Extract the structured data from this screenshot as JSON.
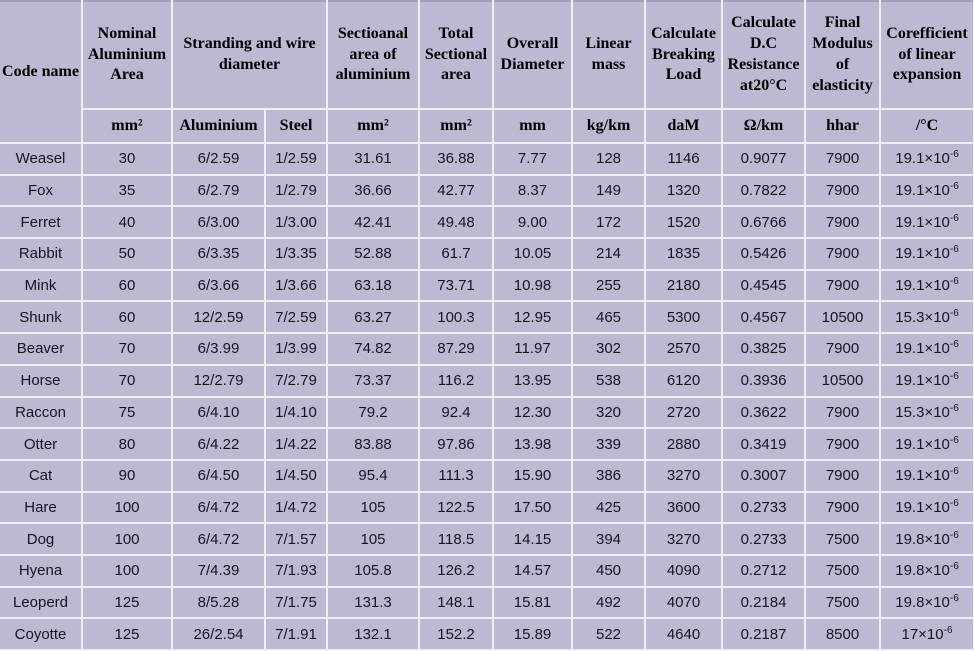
{
  "chart_data": {
    "type": "table",
    "header": {
      "code_name": "Code name",
      "nominal_area": "Nominal Aluminium Area",
      "stranding": "Stranding and wire diameter",
      "sectional_aluminium": "Sectioanal area of aluminium",
      "total_sectional": "Total Sectional area",
      "overall_diameter": "Overall Diameter",
      "linear_mass": "Linear mass",
      "breaking_load": "Calculate Breaking Load",
      "dc_resistance": "Calculate D.C Resistance at20°C",
      "final_modulus": "Final Modulus of elasticity",
      "expansion_coefficient": "Corefficient of linear expansion"
    },
    "units": {
      "nominal_area": "mm²",
      "stranding_aluminium": "Aluminium",
      "stranding_steel": "Steel",
      "sectional_aluminium": "mm²",
      "total_sectional": "mm²",
      "overall_diameter": "mm",
      "linear_mass": "kg/km",
      "breaking_load": "daM",
      "dc_resistance": "Ω/km",
      "final_modulus": "hhar",
      "expansion_coefficient": "/°C"
    },
    "expansion_notation_prefix": "×10",
    "rows": [
      {
        "code": "Weasel",
        "nominal_area": "30",
        "stranding_aluminium": "6/2.59",
        "stranding_steel": "1/2.59",
        "sectional_aluminium": "31.61",
        "total_sectional": "36.88",
        "overall_diameter": "7.77",
        "linear_mass": "128",
        "breaking_load": "1146",
        "dc_resistance": "0.9077",
        "final_modulus": "7900",
        "expansion_base": "19.1",
        "expansion_exp": "-6"
      },
      {
        "code": "Fox",
        "nominal_area": "35",
        "stranding_aluminium": "6/2.79",
        "stranding_steel": "1/2.79",
        "sectional_aluminium": "36.66",
        "total_sectional": "42.77",
        "overall_diameter": "8.37",
        "linear_mass": "149",
        "breaking_load": "1320",
        "dc_resistance": "0.7822",
        "final_modulus": "7900",
        "expansion_base": "19.1",
        "expansion_exp": "-6"
      },
      {
        "code": "Ferret",
        "nominal_area": "40",
        "stranding_aluminium": "6/3.00",
        "stranding_steel": "1/3.00",
        "sectional_aluminium": "42.41",
        "total_sectional": "49.48",
        "overall_diameter": "9.00",
        "linear_mass": "172",
        "breaking_load": "1520",
        "dc_resistance": "0.6766",
        "final_modulus": "7900",
        "expansion_base": "19.1",
        "expansion_exp": "-6"
      },
      {
        "code": "Rabbit",
        "nominal_area": "50",
        "stranding_aluminium": "6/3.35",
        "stranding_steel": "1/3.35",
        "sectional_aluminium": "52.88",
        "total_sectional": "61.7",
        "overall_diameter": "10.05",
        "linear_mass": "214",
        "breaking_load": "1835",
        "dc_resistance": "0.5426",
        "final_modulus": "7900",
        "expansion_base": "19.1",
        "expansion_exp": "-6"
      },
      {
        "code": "Mink",
        "nominal_area": "60",
        "stranding_aluminium": "6/3.66",
        "stranding_steel": "1/3.66",
        "sectional_aluminium": "63.18",
        "total_sectional": "73.71",
        "overall_diameter": "10.98",
        "linear_mass": "255",
        "breaking_load": "2180",
        "dc_resistance": "0.4545",
        "final_modulus": "7900",
        "expansion_base": "19.1",
        "expansion_exp": "-6"
      },
      {
        "code": "Shunk",
        "nominal_area": "60",
        "stranding_aluminium": "12/2.59",
        "stranding_steel": "7/2.59",
        "sectional_aluminium": "63.27",
        "total_sectional": "100.3",
        "overall_diameter": "12.95",
        "linear_mass": "465",
        "breaking_load": "5300",
        "dc_resistance": "0.4567",
        "final_modulus": "10500",
        "expansion_base": "15.3",
        "expansion_exp": "-6"
      },
      {
        "code": "Beaver",
        "nominal_area": "70",
        "stranding_aluminium": "6/3.99",
        "stranding_steel": "1/3.99",
        "sectional_aluminium": "74.82",
        "total_sectional": "87.29",
        "overall_diameter": "11.97",
        "linear_mass": "302",
        "breaking_load": "2570",
        "dc_resistance": "0.3825",
        "final_modulus": "7900",
        "expansion_base": "19.1",
        "expansion_exp": "-6"
      },
      {
        "code": "Horse",
        "nominal_area": "70",
        "stranding_aluminium": "12/2.79",
        "stranding_steel": "7/2.79",
        "sectional_aluminium": "73.37",
        "total_sectional": "116.2",
        "overall_diameter": "13.95",
        "linear_mass": "538",
        "breaking_load": "6120",
        "dc_resistance": "0.3936",
        "final_modulus": "10500",
        "expansion_base": "19.1",
        "expansion_exp": "-6"
      },
      {
        "code": "Raccon",
        "nominal_area": "75",
        "stranding_aluminium": "6/4.10",
        "stranding_steel": "1/4.10",
        "sectional_aluminium": "79.2",
        "total_sectional": "92.4",
        "overall_diameter": "12.30",
        "linear_mass": "320",
        "breaking_load": "2720",
        "dc_resistance": "0.3622",
        "final_modulus": "7900",
        "expansion_base": "15.3",
        "expansion_exp": "-6"
      },
      {
        "code": "Otter",
        "nominal_area": "80",
        "stranding_aluminium": "6/4.22",
        "stranding_steel": "1/4.22",
        "sectional_aluminium": "83.88",
        "total_sectional": "97.86",
        "overall_diameter": "13.98",
        "linear_mass": "339",
        "breaking_load": "2880",
        "dc_resistance": "0.3419",
        "final_modulus": "7900",
        "expansion_base": "19.1",
        "expansion_exp": "-6"
      },
      {
        "code": "Cat",
        "nominal_area": "90",
        "stranding_aluminium": "6/4.50",
        "stranding_steel": "1/4.50",
        "sectional_aluminium": "95.4",
        "total_sectional": "111.3",
        "overall_diameter": "15.90",
        "linear_mass": "386",
        "breaking_load": "3270",
        "dc_resistance": "0.3007",
        "final_modulus": "7900",
        "expansion_base": "19.1",
        "expansion_exp": "-6"
      },
      {
        "code": "Hare",
        "nominal_area": "100",
        "stranding_aluminium": "6/4.72",
        "stranding_steel": "1/4.72",
        "sectional_aluminium": "105",
        "total_sectional": "122.5",
        "overall_diameter": "17.50",
        "linear_mass": "425",
        "breaking_load": "3600",
        "dc_resistance": "0.2733",
        "final_modulus": "7900",
        "expansion_base": "19.1",
        "expansion_exp": "-6"
      },
      {
        "code": "Dog",
        "nominal_area": "100",
        "stranding_aluminium": "6/4.72",
        "stranding_steel": "7/1.57",
        "sectional_aluminium": "105",
        "total_sectional": "118.5",
        "overall_diameter": "14.15",
        "linear_mass": "394",
        "breaking_load": "3270",
        "dc_resistance": "0.2733",
        "final_modulus": "7500",
        "expansion_base": "19.8",
        "expansion_exp": "-6"
      },
      {
        "code": "Hyena",
        "nominal_area": "100",
        "stranding_aluminium": "7/4.39",
        "stranding_steel": "7/1.93",
        "sectional_aluminium": "105.8",
        "total_sectional": "126.2",
        "overall_diameter": "14.57",
        "linear_mass": "450",
        "breaking_load": "4090",
        "dc_resistance": "0.2712",
        "final_modulus": "7500",
        "expansion_base": "19.8",
        "expansion_exp": "-6"
      },
      {
        "code": "Leoperd",
        "nominal_area": "125",
        "stranding_aluminium": "8/5.28",
        "stranding_steel": "7/1.75",
        "sectional_aluminium": "131.3",
        "total_sectional": "148.1",
        "overall_diameter": "15.81",
        "linear_mass": "492",
        "breaking_load": "4070",
        "dc_resistance": "0.2184",
        "final_modulus": "7500",
        "expansion_base": "19.8",
        "expansion_exp": "-6"
      },
      {
        "code": "Coyotte",
        "nominal_area": "125",
        "stranding_aluminium": "26/2.54",
        "stranding_steel": "7/1.91",
        "sectional_aluminium": "132.1",
        "total_sectional": "152.2",
        "overall_diameter": "15.89",
        "linear_mass": "522",
        "breaking_load": "4640",
        "dc_resistance": "0.2187",
        "final_modulus": "8500",
        "expansion_base": "17",
        "expansion_exp": "-6"
      }
    ],
    "colors": {
      "background": "#bfb8d3",
      "grid": "#efedf6",
      "text": "#16151f",
      "header_text": "#000000",
      "top_edge": "#a49dbb"
    }
  }
}
